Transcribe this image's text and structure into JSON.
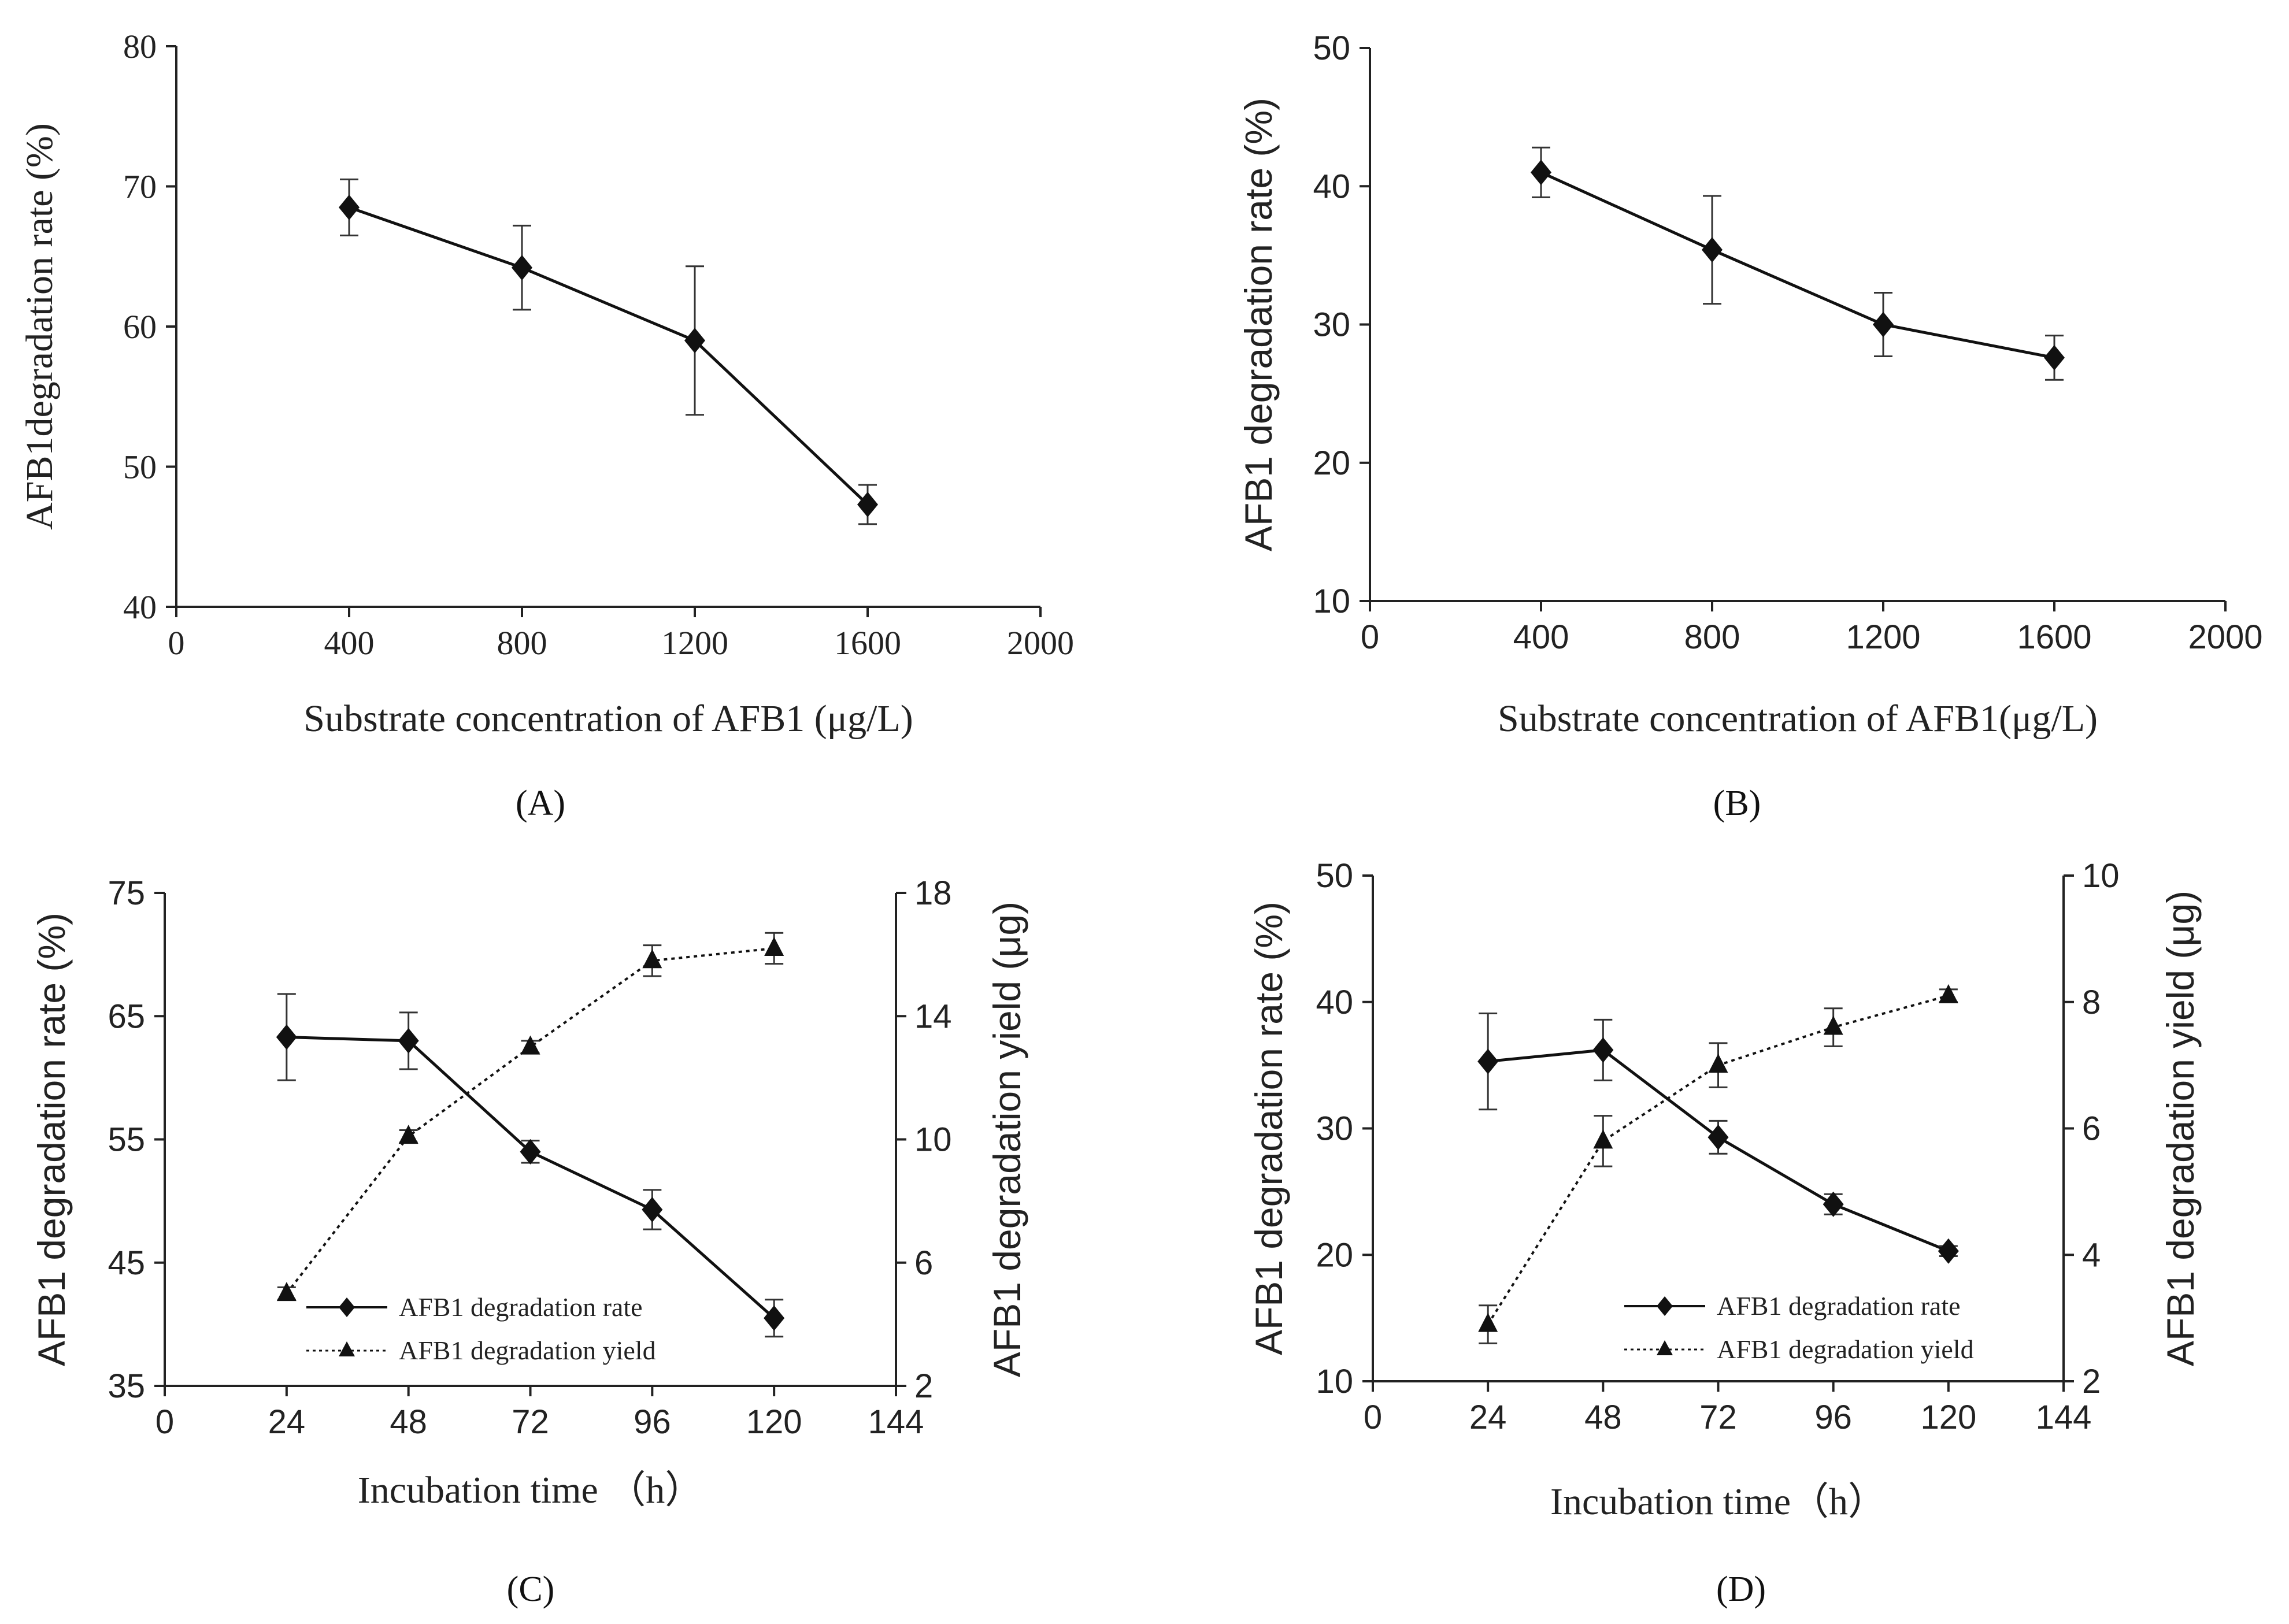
{
  "chart_data": [
    {
      "panel": "A",
      "panel_label": "(A)",
      "type": "line",
      "xlabel": "Substrate concentration of AFB1 (μg/L)",
      "ylabel": "AFB1degradation rate (%)",
      "xlim": [
        0,
        2000
      ],
      "ylim": [
        40,
        80
      ],
      "xticks": [
        0,
        400,
        800,
        1200,
        1600,
        2000
      ],
      "yticks": [
        40,
        50,
        60,
        70,
        80
      ],
      "grid": false,
      "series": [
        {
          "axis": "left",
          "marker": "diamond",
          "dash": "solid",
          "x": [
            400,
            800,
            1200,
            1600
          ],
          "y": [
            68.5,
            64.2,
            59.0,
            47.3
          ],
          "err": [
            2.0,
            3.0,
            5.3,
            1.4
          ]
        }
      ]
    },
    {
      "panel": "B",
      "panel_label": "(B)",
      "type": "line",
      "xlabel": "Substrate concentration of AFB1(μg/L)",
      "ylabel": "AFB1 degradation rate (%)",
      "xlim": [
        0,
        2000
      ],
      "ylim": [
        10,
        50
      ],
      "xticks": [
        0,
        400,
        800,
        1200,
        1600,
        2000
      ],
      "yticks": [
        10,
        20,
        30,
        40,
        50
      ],
      "grid": false,
      "series": [
        {
          "axis": "left",
          "marker": "diamond",
          "dash": "solid",
          "x": [
            400,
            800,
            1200,
            1600
          ],
          "y": [
            41.0,
            35.4,
            30.0,
            27.6
          ],
          "err": [
            1.8,
            3.9,
            2.3,
            1.6
          ]
        }
      ]
    },
    {
      "panel": "C",
      "panel_label": "(C)",
      "type": "line",
      "xlabel": "Incubation time （h）",
      "ylabel": "AFB1 degradation rate (%)",
      "y2label": "AFB1  degradation  yield  (μg)",
      "xlim": [
        0,
        144
      ],
      "ylim": [
        35,
        75
      ],
      "y2lim": [
        2,
        18
      ],
      "xticks": [
        0,
        24,
        48,
        72,
        96,
        120,
        144
      ],
      "yticks": [
        35,
        45,
        55,
        65,
        75
      ],
      "y2ticks": [
        2,
        6,
        10,
        14,
        18
      ],
      "grid": false,
      "legend": "bottom-left",
      "series": [
        {
          "name": "AFB1 degradation rate",
          "axis": "left",
          "marker": "diamond",
          "dash": "solid",
          "x": [
            24,
            48,
            72,
            96,
            120
          ],
          "y": [
            63.3,
            63.0,
            54.0,
            49.3,
            40.5
          ],
          "err": [
            3.5,
            2.3,
            0.9,
            1.6,
            1.5
          ]
        },
        {
          "name": "AFB1 degradation yield",
          "axis": "right",
          "marker": "triangle",
          "dash": "dotted",
          "x": [
            24,
            48,
            72,
            96,
            120
          ],
          "y": [
            5.0,
            10.1,
            13.0,
            15.8,
            16.2
          ],
          "err": [
            0.2,
            0.2,
            0.2,
            0.5,
            0.5
          ]
        }
      ]
    },
    {
      "panel": "D",
      "panel_label": "(D)",
      "type": "line",
      "xlabel": "Incubation time（h）",
      "ylabel": "AFB1 degradation rate (%)",
      "y2label": "AFB1  degradation  yield  (μg)",
      "xlim": [
        0,
        144
      ],
      "ylim": [
        10,
        50
      ],
      "y2lim": [
        2,
        10
      ],
      "xticks": [
        0,
        24,
        48,
        72,
        96,
        120,
        144
      ],
      "yticks": [
        10,
        20,
        30,
        40,
        50
      ],
      "y2ticks": [
        2,
        4,
        6,
        8,
        10
      ],
      "grid": false,
      "legend": "bottom-center",
      "series": [
        {
          "name": "AFB1 degradation rate",
          "axis": "left",
          "marker": "diamond",
          "dash": "solid",
          "x": [
            24,
            48,
            72,
            96,
            120
          ],
          "y": [
            35.3,
            36.2,
            29.3,
            24.0,
            20.3
          ],
          "err": [
            3.8,
            2.4,
            1.3,
            0.8,
            0.4
          ]
        },
        {
          "name": "AFB1 degradation yield",
          "axis": "right",
          "marker": "triangle",
          "dash": "dotted",
          "x": [
            24,
            48,
            72,
            96,
            120
          ],
          "y": [
            2.9,
            5.8,
            7.0,
            7.6,
            8.1
          ],
          "err": [
            0.3,
            0.4,
            0.35,
            0.3,
            0.1
          ]
        }
      ]
    }
  ]
}
